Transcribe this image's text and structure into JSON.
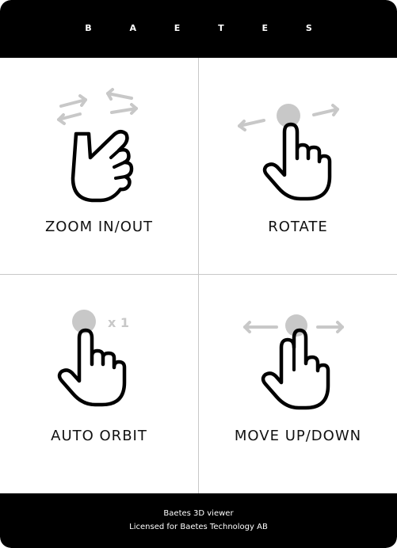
{
  "header": {
    "brand": "B A E T E S"
  },
  "gestures": [
    {
      "label": "ZOOM IN/OUT",
      "icon": "pinch-zoom-hand-icon"
    },
    {
      "label": "ROTATE",
      "icon": "one-finger-drag-hand-icon"
    },
    {
      "label": "AUTO ORBIT",
      "icon": "tap-hand-icon",
      "badge": "x 1"
    },
    {
      "label": "MOVE UP/DOWN",
      "icon": "two-finger-drag-hand-icon"
    }
  ],
  "footer": {
    "line1": "Baetes 3D viewer",
    "line2": "Licensed for Baetes Technology AB"
  },
  "colors": {
    "bar": "#000000",
    "background": "#ffffff",
    "hint_gray": "#c8c8c8",
    "divider": "#c8c8c8"
  }
}
